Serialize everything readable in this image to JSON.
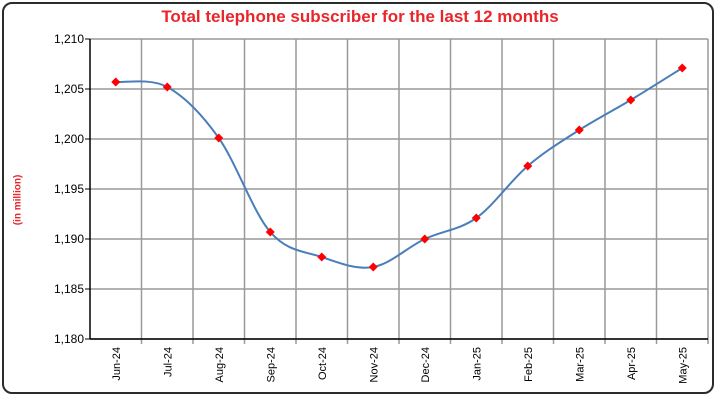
{
  "chart_data": {
    "type": "line",
    "title": "Total telephone subscriber for the last 12 months",
    "xlabel": "",
    "ylabel": "(in million)",
    "categories": [
      "Jun-24",
      "Jul-24",
      "Aug-24",
      "Sep-24",
      "Oct-24",
      "Nov-24",
      "Dec-24",
      "Jan-25",
      "Feb-25",
      "Mar-25",
      "Apr-25",
      "May-25"
    ],
    "values": [
      1205.7,
      1205.2,
      1200.1,
      1190.7,
      1188.2,
      1187.2,
      1190.0,
      1192.1,
      1197.3,
      1200.9,
      1203.9,
      1207.1
    ],
    "ylim": [
      1180,
      1210
    ],
    "yticks": [
      "1,180",
      "1,185",
      "1,190",
      "1,195",
      "1,200",
      "1,205",
      "1,210"
    ],
    "grid": true,
    "smooth": true,
    "colors": {
      "line": "#4a7ebb",
      "marker": "#ff0000",
      "title": "#e8262b",
      "grid": "#999999"
    }
  }
}
